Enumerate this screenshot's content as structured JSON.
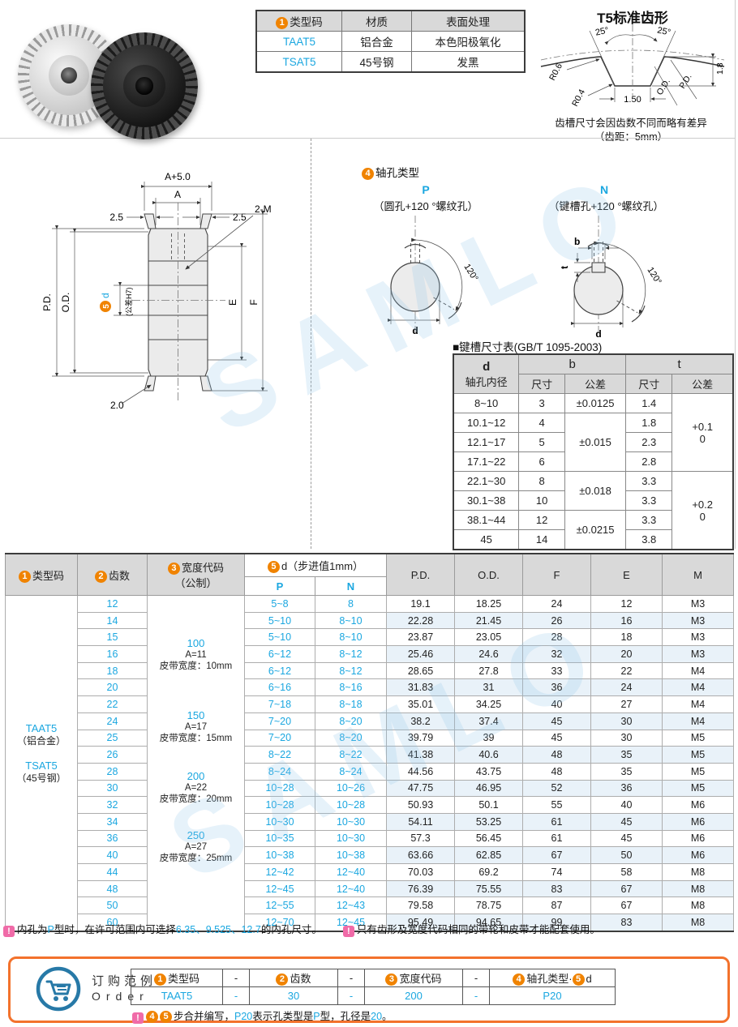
{
  "page": {
    "watermark": "SAMLO"
  },
  "colors": {
    "accent_blue": "#1ba7e0",
    "accent_orange": "#f08300",
    "warn_pink": "#f06ba8",
    "order_border": "#f3722c",
    "header_gray": "#d9d9d9",
    "stripe_blue": "#e9f2f9"
  },
  "materials_table": {
    "header_num": "1",
    "headers": [
      "类型码",
      "材质",
      "表面处理"
    ],
    "rows": [
      {
        "code": "TAAT5",
        "material": "铝合金",
        "finish": "本色阳极氧化"
      },
      {
        "code": "TSAT5",
        "material": "45号钢",
        "finish": "发黑"
      }
    ]
  },
  "tooth_profile": {
    "title": "T5标准齿形",
    "angle_left": "25°",
    "angle_right": "25°",
    "r_top": "R0.6",
    "r_bottom": "R0.4",
    "groove_width": "1.50",
    "od_label": "O.D.",
    "pd_label": "P.D.",
    "depth": "1.8",
    "note1": "齿槽尺寸会因齿数不同而略有差异",
    "note2": "（齿距：5mm）"
  },
  "drawing": {
    "total_width": "A+5.0",
    "width": "A",
    "flange_left": "2.5",
    "flange_right": "2.5",
    "screw": "2-M",
    "pd": "P.D.",
    "od": "O.D.",
    "bore_num": "5",
    "bore_d": "d",
    "bore_tol": "(公差H7)",
    "e": "E",
    "f": "F",
    "flange_thickness": "2.0"
  },
  "shaft_hole": {
    "num": "4",
    "title": "轴孔类型",
    "p_label": "P",
    "p_desc": "（圆孔+120 °螺纹孔）",
    "n_label": "N",
    "n_desc": "（键槽孔+120 °螺纹孔）",
    "angle": "120°",
    "d": "d",
    "b": "b",
    "t": "t"
  },
  "keyway_table": {
    "title": "■键槽尺寸表(GB/T 1095-2003)",
    "h_d": "d",
    "h_d_sub": "轴孔内径",
    "h_b": "b",
    "h_t": "t",
    "h_size": "尺寸",
    "h_tol": "公差",
    "rows": [
      {
        "d": "8~10",
        "b": "3",
        "t": "1.4"
      },
      {
        "d": "10.1~12",
        "b": "4",
        "t": "1.8"
      },
      {
        "d": "12.1~17",
        "b": "5",
        "t": "2.3"
      },
      {
        "d": "17.1~22",
        "b": "6",
        "t": "2.8"
      },
      {
        "d": "22.1~30",
        "b": "8",
        "t": "3.3"
      },
      {
        "d": "30.1~38",
        "b": "10",
        "t": "3.3"
      },
      {
        "d": "38.1~44",
        "b": "12",
        "t": "3.3"
      },
      {
        "d": "45",
        "b": "14",
        "t": "3.8"
      }
    ],
    "b_tols": [
      "±0.0125",
      "±0.015",
      "±0.018",
      "±0.0215"
    ],
    "t_tols": [
      {
        "upper": "+0.1",
        "lower": "0"
      },
      {
        "upper": "+0.2",
        "lower": "0"
      }
    ]
  },
  "main_table": {
    "h_num1": "1",
    "h_type": "类型码",
    "h_num2": "2",
    "h_teeth": "齿数",
    "h_num3": "3",
    "h_width": "宽度代码",
    "h_width_sub": "（公制）",
    "h_num5": "5",
    "h_d": "d（步进值1mm）",
    "h_p": "P",
    "h_n": "N",
    "h_pd": "P.D.",
    "h_od": "O.D.",
    "h_f": "F",
    "h_e": "E",
    "h_m": "M",
    "type_codes": [
      {
        "code": "TAAT5",
        "material": "（铝合金）"
      },
      {
        "code": "TSAT5",
        "material": "（45号钢）"
      }
    ],
    "width_groups": [
      {
        "code": "100",
        "a": "A=11",
        "belt": "皮带宽度：10mm"
      },
      {
        "code": "150",
        "a": "A=17",
        "belt": "皮带宽度：15mm"
      },
      {
        "code": "200",
        "a": "A=22",
        "belt": "皮带宽度：20mm"
      },
      {
        "code": "250",
        "a": "A=27",
        "belt": "皮带宽度：25mm"
      }
    ],
    "rows": [
      {
        "teeth": "12",
        "p": "5~8",
        "n": "8",
        "pd": "19.1",
        "od": "18.25",
        "f": "24",
        "e": "12",
        "m": "M3"
      },
      {
        "teeth": "14",
        "p": "5~10",
        "n": "8~10",
        "pd": "22.28",
        "od": "21.45",
        "f": "26",
        "e": "16",
        "m": "M3"
      },
      {
        "teeth": "15",
        "p": "5~10",
        "n": "8~10",
        "pd": "23.87",
        "od": "23.05",
        "f": "28",
        "e": "18",
        "m": "M3"
      },
      {
        "teeth": "16",
        "p": "6~12",
        "n": "8~12",
        "pd": "25.46",
        "od": "24.6",
        "f": "32",
        "e": "20",
        "m": "M3"
      },
      {
        "teeth": "18",
        "p": "6~12",
        "n": "8~12",
        "pd": "28.65",
        "od": "27.8",
        "f": "33",
        "e": "22",
        "m": "M4"
      },
      {
        "teeth": "20",
        "p": "6~16",
        "n": "8~16",
        "pd": "31.83",
        "od": "31",
        "f": "36",
        "e": "24",
        "m": "M4"
      },
      {
        "teeth": "22",
        "p": "7~18",
        "n": "8~18",
        "pd": "35.01",
        "od": "34.25",
        "f": "40",
        "e": "27",
        "m": "M4"
      },
      {
        "teeth": "24",
        "p": "7~20",
        "n": "8~20",
        "pd": "38.2",
        "od": "37.4",
        "f": "45",
        "e": "30",
        "m": "M4"
      },
      {
        "teeth": "25",
        "p": "7~20",
        "n": "8~20",
        "pd": "39.79",
        "od": "39",
        "f": "45",
        "e": "30",
        "m": "M5"
      },
      {
        "teeth": "26",
        "p": "8~22",
        "n": "8~22",
        "pd": "41.38",
        "od": "40.6",
        "f": "48",
        "e": "35",
        "m": "M5"
      },
      {
        "teeth": "28",
        "p": "8~24",
        "n": "8~24",
        "pd": "44.56",
        "od": "43.75",
        "f": "48",
        "e": "35",
        "m": "M5"
      },
      {
        "teeth": "30",
        "p": "10~28",
        "n": "10~26",
        "pd": "47.75",
        "od": "46.95",
        "f": "52",
        "e": "36",
        "m": "M5"
      },
      {
        "teeth": "32",
        "p": "10~28",
        "n": "10~28",
        "pd": "50.93",
        "od": "50.1",
        "f": "55",
        "e": "40",
        "m": "M6"
      },
      {
        "teeth": "34",
        "p": "10~30",
        "n": "10~30",
        "pd": "54.11",
        "od": "53.25",
        "f": "61",
        "e": "45",
        "m": "M6"
      },
      {
        "teeth": "36",
        "p": "10~35",
        "n": "10~30",
        "pd": "57.3",
        "od": "56.45",
        "f": "61",
        "e": "45",
        "m": "M6"
      },
      {
        "teeth": "40",
        "p": "10~38",
        "n": "10~38",
        "pd": "63.66",
        "od": "62.85",
        "f": "67",
        "e": "50",
        "m": "M6"
      },
      {
        "teeth": "44",
        "p": "12~42",
        "n": "12~40",
        "pd": "70.03",
        "od": "69.2",
        "f": "74",
        "e": "58",
        "m": "M8"
      },
      {
        "teeth": "48",
        "p": "12~45",
        "n": "12~40",
        "pd": "76.39",
        "od": "75.55",
        "f": "83",
        "e": "67",
        "m": "M8"
      },
      {
        "teeth": "50",
        "p": "12~55",
        "n": "12~43",
        "pd": "79.58",
        "od": "78.75",
        "f": "87",
        "e": "67",
        "m": "M8"
      },
      {
        "teeth": "60",
        "p": "12~70",
        "n": "12~45",
        "pd": "95.49",
        "od": "94.65",
        "f": "99",
        "e": "83",
        "m": "M8"
      }
    ]
  },
  "footnotes": {
    "icon": "!",
    "f1_pre": "内孔为",
    "f1_hole": "P",
    "f1_mid": "型时，在许可范围内可选择",
    "f1_sizes": "6.35、9.525、12.7",
    "f1_post": "的内孔尺寸。",
    "f2": "只有齿形及宽度代码相同的带轮和皮带才能配套使用。"
  },
  "order": {
    "title_cn": "订购范例",
    "title_en": "Order",
    "dash": "-",
    "h1_num": "1",
    "h1": "类型码",
    "h2_num": "2",
    "h2": "齿数",
    "h3_num": "3",
    "h3": "宽度代码",
    "h4_num": "4",
    "h4": "轴孔类型·",
    "h4_num2": "5",
    "h4b": "d",
    "v1": "TAAT5",
    "v2": "30",
    "v3": "200",
    "v4": "P20",
    "note_icon": "!",
    "note_num4": "4",
    "note_num5": "5",
    "note_pre": "步合并编写，",
    "note_code": "P20",
    "note_mid1": "表示孔类型是",
    "note_p": "P",
    "note_mid2": "型，孔径是",
    "note_d": "20",
    "note_post": "。"
  }
}
